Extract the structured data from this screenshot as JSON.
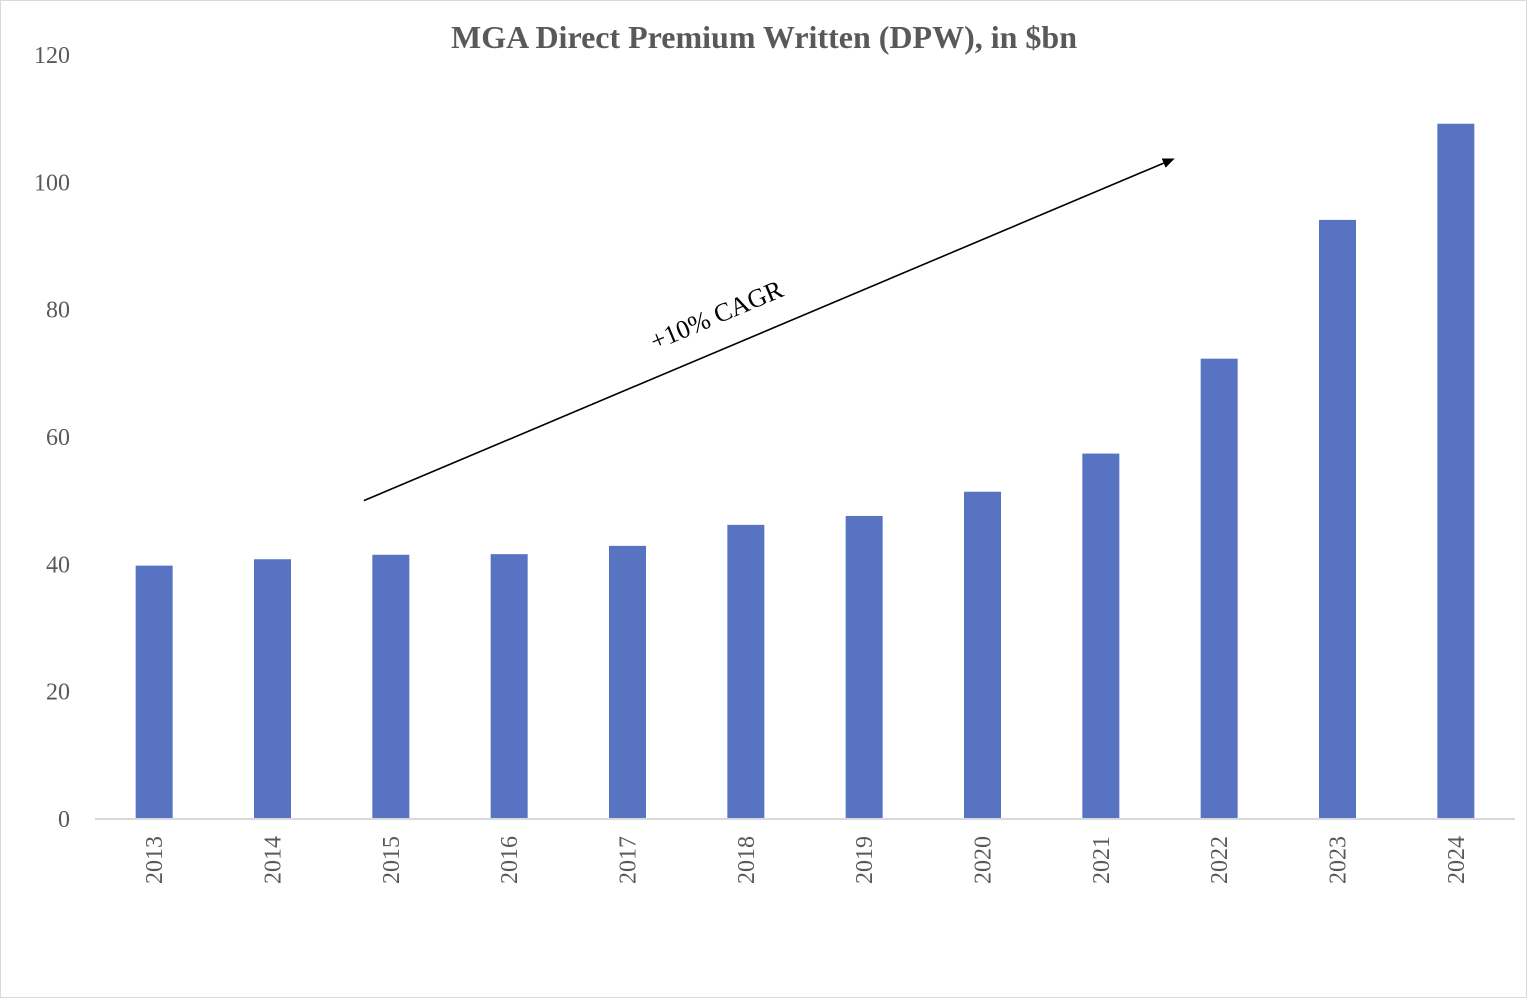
{
  "chart_data": {
    "type": "bar",
    "title": "MGA Direct Premium Written (DPW), in $bn",
    "xlabel": "",
    "ylabel": "",
    "categories": [
      "2013",
      "2014",
      "2015",
      "2016",
      "2017",
      "2018",
      "2019",
      "2020",
      "2021",
      "2022",
      "2023",
      "2024"
    ],
    "values": [
      39.8,
      40.8,
      41.5,
      41.6,
      42.9,
      46.2,
      47.6,
      51.4,
      57.4,
      72.3,
      94.1,
      109.2
    ],
    "ylim": [
      0,
      120
    ],
    "yticks": [
      "0",
      "20",
      "40",
      "60",
      "80",
      "100",
      "120"
    ],
    "grid": false,
    "legend": "none",
    "annotation": {
      "text": "+10% CAGR",
      "type": "arrow",
      "from": {
        "x": "2015",
        "y": 50
      },
      "to": {
        "x": "2021.6",
        "y": 103
      }
    },
    "colors": {
      "bar": "#5873c2",
      "axis": "#d9d9d9",
      "text": "#595959",
      "arrow": "#000000"
    }
  }
}
